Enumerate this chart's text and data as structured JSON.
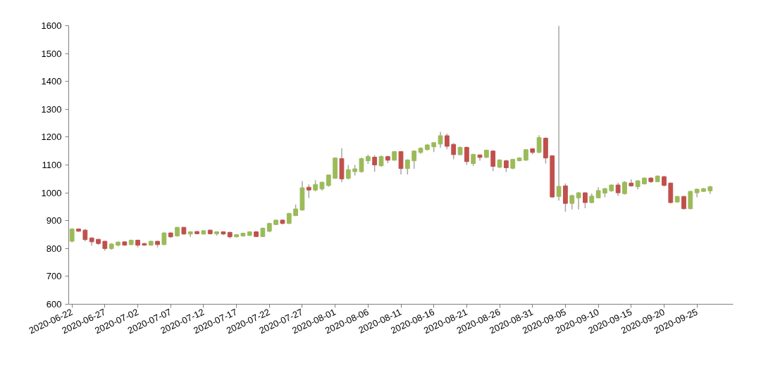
{
  "chart_data": {
    "type": "candlestick",
    "x": [
      "2020-06-22",
      "2020-06-23",
      "2020-06-24",
      "2020-06-25",
      "2020-06-26",
      "2020-06-27",
      "2020-06-28",
      "2020-06-29",
      "2020-06-30",
      "2020-07-01",
      "2020-07-02",
      "2020-07-03",
      "2020-07-04",
      "2020-07-05",
      "2020-07-06",
      "2020-07-07",
      "2020-07-08",
      "2020-07-09",
      "2020-07-10",
      "2020-07-11",
      "2020-07-12",
      "2020-07-13",
      "2020-07-14",
      "2020-07-15",
      "2020-07-16",
      "2020-07-17",
      "2020-07-18",
      "2020-07-19",
      "2020-07-20",
      "2020-07-21",
      "2020-07-22",
      "2020-07-23",
      "2020-07-24",
      "2020-07-25",
      "2020-07-26",
      "2020-07-27",
      "2020-07-28",
      "2020-07-29",
      "2020-07-30",
      "2020-07-31",
      "2020-08-01",
      "2020-08-02",
      "2020-08-03",
      "2020-08-04",
      "2020-08-05",
      "2020-08-06",
      "2020-08-07",
      "2020-08-08",
      "2020-08-09",
      "2020-08-10",
      "2020-08-11",
      "2020-08-12",
      "2020-08-13",
      "2020-08-14",
      "2020-08-15",
      "2020-08-16",
      "2020-08-17",
      "2020-08-18",
      "2020-08-19",
      "2020-08-20",
      "2020-08-21",
      "2020-08-22",
      "2020-08-23",
      "2020-08-24",
      "2020-08-25",
      "2020-08-26",
      "2020-08-27",
      "2020-08-28",
      "2020-08-29",
      "2020-08-30",
      "2020-08-31",
      "2020-09-01",
      "2020-09-02",
      "2020-09-03",
      "2020-09-04",
      "2020-09-05",
      "2020-09-06",
      "2020-09-07",
      "2020-09-08",
      "2020-09-09",
      "2020-09-10",
      "2020-09-11",
      "2020-09-12",
      "2020-09-13",
      "2020-09-14",
      "2020-09-15",
      "2020-09-16",
      "2020-09-17",
      "2020-09-18",
      "2020-09-19",
      "2020-09-20",
      "2020-09-21",
      "2020-09-22",
      "2020-09-23",
      "2020-09-24",
      "2020-09-25",
      "2020-09-26",
      "2020-09-27"
    ],
    "ohlc": [
      [
        826,
        873,
        822,
        870
      ],
      [
        870,
        872,
        860,
        862
      ],
      [
        866,
        870,
        826,
        832
      ],
      [
        838,
        840,
        810,
        824
      ],
      [
        833,
        835,
        813,
        818
      ],
      [
        826,
        828,
        792,
        800
      ],
      [
        800,
        820,
        796,
        816
      ],
      [
        812,
        826,
        808,
        823
      ],
      [
        824,
        826,
        810,
        812
      ],
      [
        814,
        832,
        812,
        830
      ],
      [
        830,
        832,
        804,
        812
      ],
      [
        818,
        820,
        810,
        812
      ],
      [
        812,
        828,
        810,
        826
      ],
      [
        826,
        828,
        804,
        814
      ],
      [
        814,
        858,
        812,
        856
      ],
      [
        856,
        858,
        838,
        842
      ],
      [
        845,
        878,
        843,
        876
      ],
      [
        876,
        878,
        850,
        852
      ],
      [
        852,
        862,
        842,
        860
      ],
      [
        861,
        863,
        851,
        853
      ],
      [
        852,
        866,
        850,
        864
      ],
      [
        866,
        868,
        850,
        853
      ],
      [
        853,
        862,
        846,
        860
      ],
      [
        860,
        862,
        848,
        852
      ],
      [
        858,
        860,
        836,
        842
      ],
      [
        842,
        852,
        840,
        850
      ],
      [
        845,
        857,
        843,
        855
      ],
      [
        847,
        862,
        845,
        860
      ],
      [
        860,
        862,
        841,
        843
      ],
      [
        843,
        875,
        841,
        873
      ],
      [
        862,
        892,
        858,
        890
      ],
      [
        886,
        904,
        884,
        902
      ],
      [
        902,
        904,
        886,
        890
      ],
      [
        890,
        928,
        888,
        926
      ],
      [
        918,
        958,
        916,
        942
      ],
      [
        938,
        1042,
        936,
        1018
      ],
      [
        1020,
        1030,
        981,
        1010
      ],
      [
        1010,
        1045,
        1005,
        1030
      ],
      [
        1014,
        1040,
        1008,
        1038
      ],
      [
        1026,
        1066,
        1022,
        1064
      ],
      [
        1052,
        1127,
        1050,
        1125
      ],
      [
        1123,
        1160,
        1038,
        1050
      ],
      [
        1052,
        1100,
        1048,
        1083
      ],
      [
        1076,
        1100,
        1062,
        1086
      ],
      [
        1076,
        1126,
        1072,
        1123
      ],
      [
        1115,
        1137,
        1104,
        1130
      ],
      [
        1128,
        1135,
        1076,
        1100
      ],
      [
        1097,
        1134,
        1094,
        1130
      ],
      [
        1130,
        1133,
        1106,
        1117
      ],
      [
        1117,
        1150,
        1115,
        1148
      ],
      [
        1148,
        1150,
        1066,
        1087
      ],
      [
        1087,
        1120,
        1066,
        1118
      ],
      [
        1115,
        1152,
        1086,
        1150
      ],
      [
        1145,
        1163,
        1140,
        1160
      ],
      [
        1155,
        1175,
        1152,
        1172
      ],
      [
        1165,
        1182,
        1146,
        1180
      ],
      [
        1175,
        1219,
        1162,
        1205
      ],
      [
        1205,
        1213,
        1156,
        1167
      ],
      [
        1174,
        1178,
        1120,
        1137
      ],
      [
        1137,
        1166,
        1134,
        1163
      ],
      [
        1163,
        1166,
        1100,
        1112
      ],
      [
        1105,
        1140,
        1097,
        1138
      ],
      [
        1136,
        1138,
        1115,
        1127
      ],
      [
        1127,
        1155,
        1125,
        1153
      ],
      [
        1150,
        1153,
        1078,
        1095
      ],
      [
        1092,
        1120,
        1088,
        1118
      ],
      [
        1115,
        1118,
        1075,
        1090
      ],
      [
        1088,
        1122,
        1085,
        1120
      ],
      [
        1115,
        1128,
        1113,
        1125
      ],
      [
        1117,
        1157,
        1115,
        1155
      ],
      [
        1158,
        1160,
        1138,
        1145
      ],
      [
        1145,
        1207,
        1142,
        1198
      ],
      [
        1196,
        1200,
        1105,
        1125
      ],
      [
        1133,
        1135,
        982,
        985
      ],
      [
        987,
        1600,
        972,
        1023
      ],
      [
        1025,
        1034,
        932,
        962
      ],
      [
        962,
        993,
        940,
        990
      ],
      [
        982,
        1002,
        940,
        1000
      ],
      [
        1000,
        1002,
        945,
        965
      ],
      [
        965,
        998,
        962,
        988
      ],
      [
        982,
        1020,
        980,
        1008
      ],
      [
        999,
        1018,
        984,
        1015
      ],
      [
        1007,
        1030,
        1004,
        1028
      ],
      [
        1028,
        1036,
        989,
        1000
      ],
      [
        997,
        1042,
        993,
        1038
      ],
      [
        1035,
        1048,
        1022,
        1025
      ],
      [
        1022,
        1046,
        1012,
        1043
      ],
      [
        1032,
        1055,
        1030,
        1053
      ],
      [
        1053,
        1056,
        1035,
        1040
      ],
      [
        1040,
        1063,
        1038,
        1060
      ],
      [
        1058,
        1061,
        1022,
        1027
      ],
      [
        1035,
        1037,
        962,
        965
      ],
      [
        967,
        989,
        965,
        987
      ],
      [
        987,
        989,
        940,
        943
      ],
      [
        943,
        1007,
        941,
        1005
      ],
      [
        1000,
        1015,
        984,
        1013
      ],
      [
        1005,
        1017,
        1003,
        1015
      ],
      [
        1007,
        1025,
        996,
        1022
      ]
    ],
    "colors": [
      "#9bbb59",
      "#c0504d",
      "#c0504d",
      "#c0504d",
      "#c0504d",
      "#c0504d",
      "#9bbb59",
      "#9bbb59",
      "#c0504d",
      "#9bbb59",
      "#c0504d",
      "#c0504d",
      "#9bbb59",
      "#c0504d",
      "#9bbb59",
      "#c0504d",
      "#9bbb59",
      "#c0504d",
      "#9bbb59",
      "#c0504d",
      "#9bbb59",
      "#c0504d",
      "#9bbb59",
      "#c0504d",
      "#c0504d",
      "#9bbb59",
      "#9bbb59",
      "#9bbb59",
      "#c0504d",
      "#9bbb59",
      "#9bbb59",
      "#9bbb59",
      "#c0504d",
      "#9bbb59",
      "#9bbb59",
      "#9bbb59",
      "#c0504d",
      "#9bbb59",
      "#9bbb59",
      "#9bbb59",
      "#9bbb59",
      "#c0504d",
      "#9bbb59",
      "#9bbb59",
      "#9bbb59",
      "#9bbb59",
      "#c0504d",
      "#9bbb59",
      "#c0504d",
      "#9bbb59",
      "#c0504d",
      "#9bbb59",
      "#9bbb59",
      "#9bbb59",
      "#9bbb59",
      "#9bbb59",
      "#9bbb59",
      "#c0504d",
      "#c0504d",
      "#9bbb59",
      "#c0504d",
      "#9bbb59",
      "#c0504d",
      "#9bbb59",
      "#c0504d",
      "#9bbb59",
      "#c0504d",
      "#9bbb59",
      "#9bbb59",
      "#9bbb59",
      "#c0504d",
      "#9bbb59",
      "#c0504d",
      "#c0504d",
      "#9bbb59",
      "#c0504d",
      "#9bbb59",
      "#9bbb59",
      "#c0504d",
      "#9bbb59",
      "#9bbb59",
      "#9bbb59",
      "#9bbb59",
      "#c0504d",
      "#9bbb59",
      "#c0504d",
      "#9bbb59",
      "#9bbb59",
      "#c0504d",
      "#9bbb59",
      "#c0504d",
      "#c0504d",
      "#9bbb59",
      "#c0504d",
      "#9bbb59",
      "#9bbb59",
      "#9bbb59",
      "#9bbb59"
    ],
    "xlim": [
      "2020-06-21T12:00",
      "2020-09-30T12:00"
    ],
    "xticks": [
      {
        "value": "2020-06-22",
        "label": "2020-06-22"
      },
      {
        "value": "2020-06-27",
        "label": "2020-06-27"
      },
      {
        "value": "2020-07-02",
        "label": "2020-07-02"
      },
      {
        "value": "2020-07-07",
        "label": "2020-07-07"
      },
      {
        "value": "2020-07-12",
        "label": "2020-07-12"
      },
      {
        "value": "2020-07-17",
        "label": "2020-07-17"
      },
      {
        "value": "2020-07-22",
        "label": "2020-07-22"
      },
      {
        "value": "2020-07-27",
        "label": "2020-07-27"
      },
      {
        "value": "2020-08-01",
        "label": "2020-08-01"
      },
      {
        "value": "2020-08-06",
        "label": "2020-08-06"
      },
      {
        "value": "2020-08-11",
        "label": "2020-08-11"
      },
      {
        "value": "2020-08-16",
        "label": "2020-08-16"
      },
      {
        "value": "2020-08-21",
        "label": "2020-08-21"
      },
      {
        "value": "2020-08-26",
        "label": "2020-08-26"
      },
      {
        "value": "2020-08-31",
        "label": "2020-08-31"
      },
      {
        "value": "2020-09-05",
        "label": "2020-09-05"
      },
      {
        "value": "2020-09-10",
        "label": "2020-09-10"
      },
      {
        "value": "2020-09-15",
        "label": "2020-09-15"
      },
      {
        "value": "2020-09-20",
        "label": "2020-09-20"
      },
      {
        "value": "2020-09-25",
        "label": "2020-09-25"
      }
    ],
    "ylim": [
      600,
      1600
    ],
    "yticks": [
      600,
      700,
      800,
      900,
      1000,
      1100,
      1200,
      1300,
      1400,
      1500,
      1600
    ],
    "grid": false
  }
}
